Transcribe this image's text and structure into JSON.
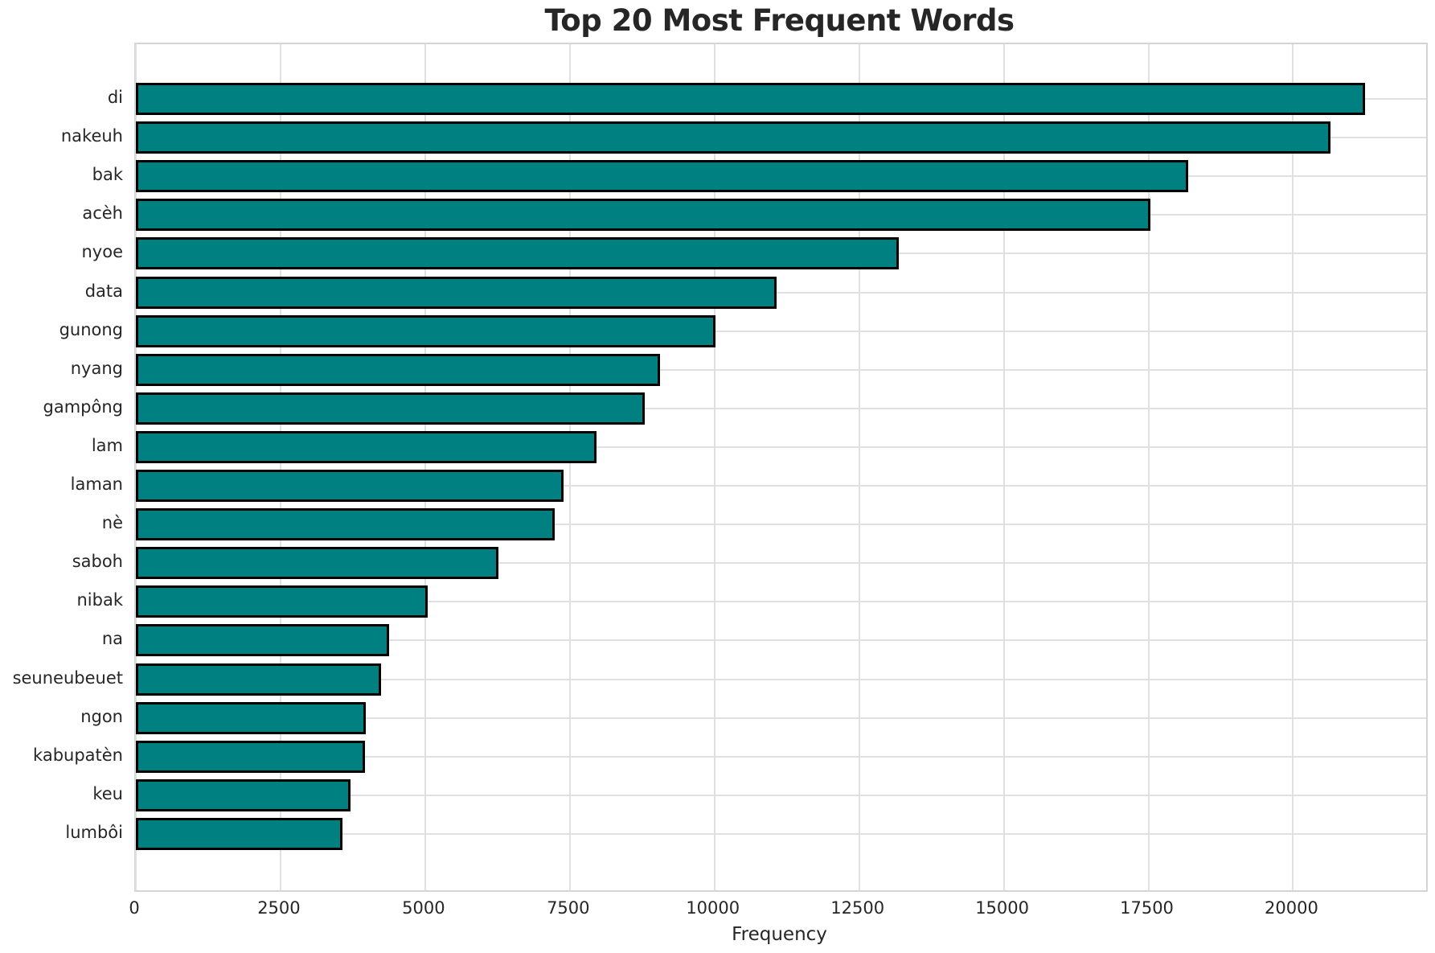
{
  "title": "Top 20 Most Frequent Words",
  "chart_data": {
    "type": "bar",
    "orientation": "horizontal",
    "title": "Top 20 Most Frequent Words",
    "xlabel": "Frequency",
    "ylabel": "",
    "categories": [
      "di",
      "nakeuh",
      "bak",
      "acèh",
      "nyoe",
      "data",
      "gunong",
      "nyang",
      "gampông",
      "lam",
      "laman",
      "nè",
      "saboh",
      "nibak",
      "na",
      "seuneubeuet",
      "ngon",
      "kabupatèn",
      "keu",
      "lumbôi"
    ],
    "values": [
      21250,
      20640,
      18190,
      17540,
      13190,
      11080,
      10020,
      9060,
      8790,
      7960,
      7390,
      7240,
      6260,
      5040,
      4380,
      4240,
      3975,
      3955,
      3710,
      3575
    ],
    "xlim": [
      0,
      22300
    ],
    "xticks": [
      0,
      2500,
      5000,
      7500,
      10000,
      12500,
      15000,
      17500,
      20000
    ],
    "grid": true,
    "legend": false,
    "bar_color": "#008080",
    "bar_edge_color": "#000000",
    "grid_color": "#e0e0e0"
  }
}
